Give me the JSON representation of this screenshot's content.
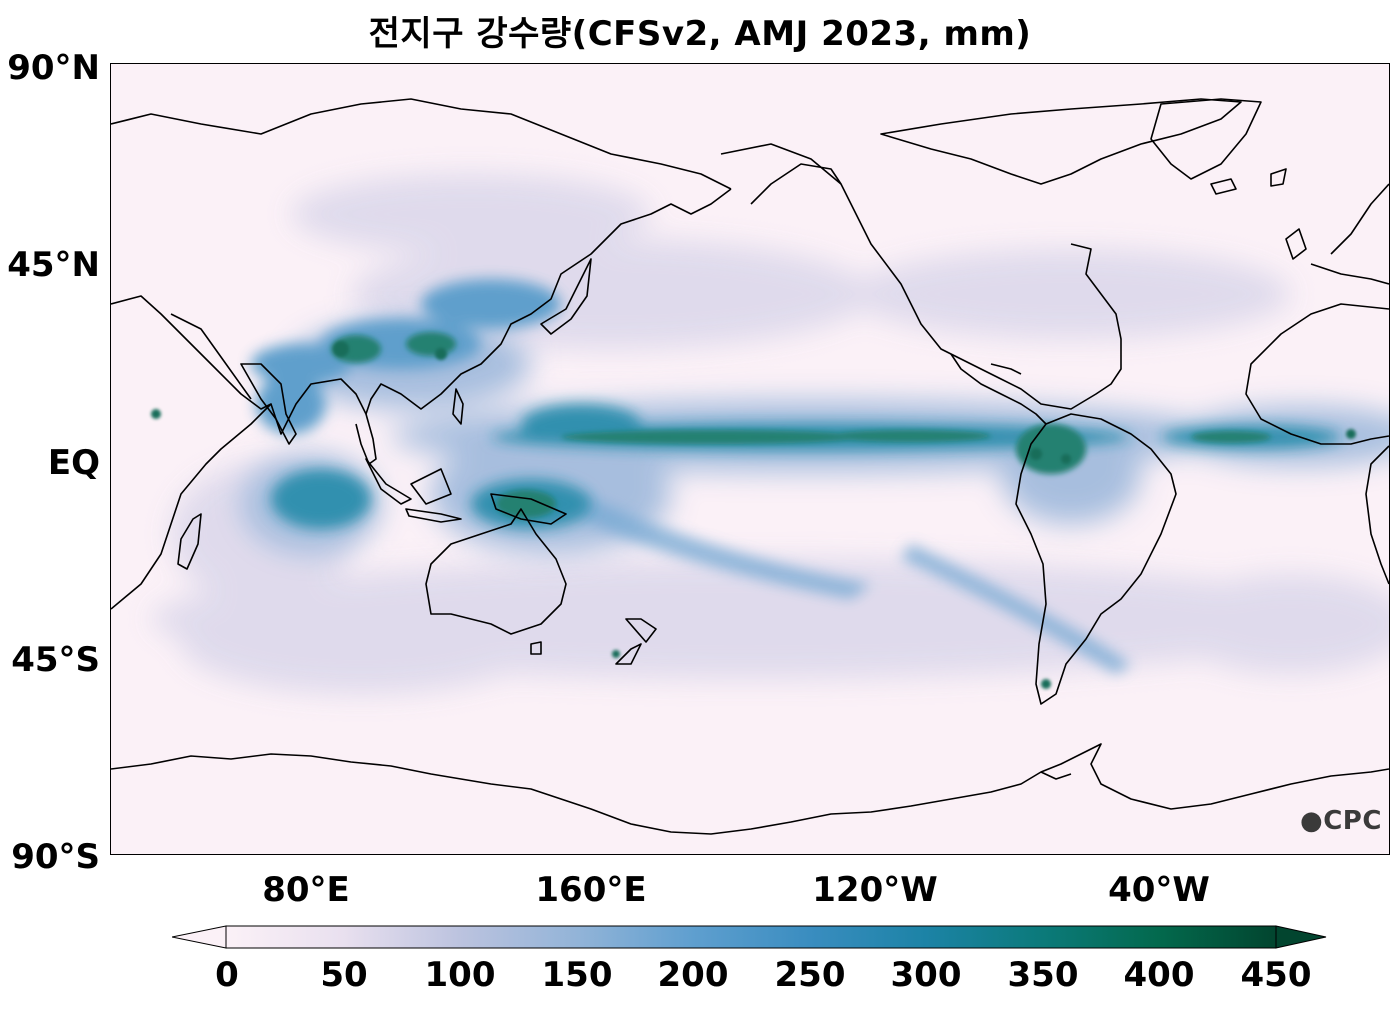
{
  "title": "전지구 강수량(CFSv2, AMJ 2023, mm)",
  "axes": {
    "lat_labels": [
      "90°N",
      "45°N",
      "EQ",
      "45°S",
      "90°S"
    ],
    "lon_labels": [
      "80°E",
      "160°E",
      "120°W",
      "40°W"
    ]
  },
  "watermark": "CPC",
  "colorbar": {
    "ticks": [
      "0",
      "50",
      "100",
      "150",
      "200",
      "250",
      "300",
      "350",
      "400",
      "450"
    ],
    "min": 0,
    "max": 450,
    "extend": "both",
    "colors": [
      "#fbf1f7",
      "#e9e0ef",
      "#bcc3df",
      "#93b4d8",
      "#5f9fcf",
      "#3a8dc0",
      "#1c83a6",
      "#0b7a7a",
      "#03694d",
      "#02452f"
    ]
  },
  "map": {
    "projection": "equirectangular",
    "center_longitude": "180°",
    "background_color": "#fbf1f7",
    "coastline_color": "#000000"
  }
}
